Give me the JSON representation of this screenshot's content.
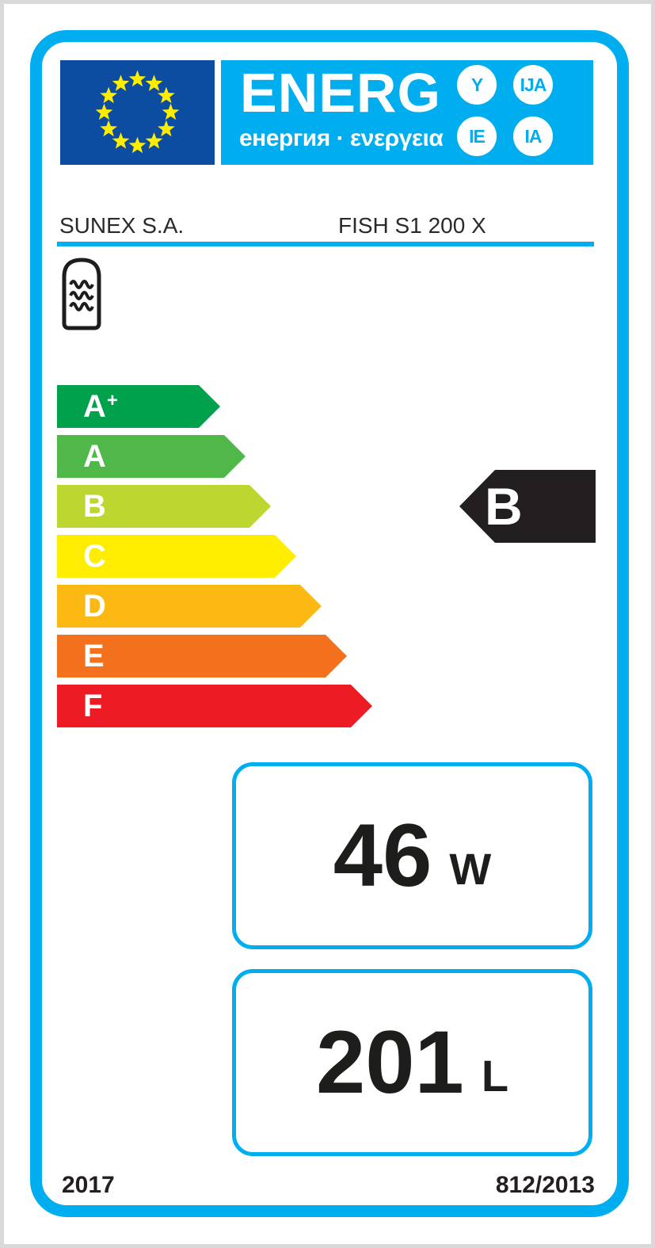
{
  "label": {
    "header": {
      "title": "ENERG",
      "subtitle": "енергия · ενεργεια",
      "suffixes": [
        "Y",
        "IJA",
        "IE",
        "IA"
      ]
    },
    "supplier": "SUNEX S.A.",
    "model": "FISH S1 200 X",
    "scale": {
      "classes": [
        {
          "letter": "A",
          "sup": "+",
          "color": "#00a14d"
        },
        {
          "letter": "A",
          "sup": "",
          "color": "#4fb848"
        },
        {
          "letter": "B",
          "sup": "",
          "color": "#bed630"
        },
        {
          "letter": "C",
          "sup": "",
          "color": "#ffed00"
        },
        {
          "letter": "D",
          "sup": "",
          "color": "#fdb913"
        },
        {
          "letter": "E",
          "sup": "",
          "color": "#f3701d"
        },
        {
          "letter": "F",
          "sup": "",
          "color": "#ed1c24"
        }
      ],
      "rating": {
        "letter": "B",
        "color": "#231f20"
      }
    },
    "metrics": [
      {
        "value": "46",
        "unit": "W"
      },
      {
        "value": "201",
        "unit": "L"
      }
    ],
    "footer": {
      "year": "2017",
      "regulation": "812/2013"
    },
    "colors": {
      "accent": "#00aeef",
      "flag_blue": "#0c4da2",
      "star_yellow": "#ffed00",
      "ink": "#231f20"
    }
  }
}
